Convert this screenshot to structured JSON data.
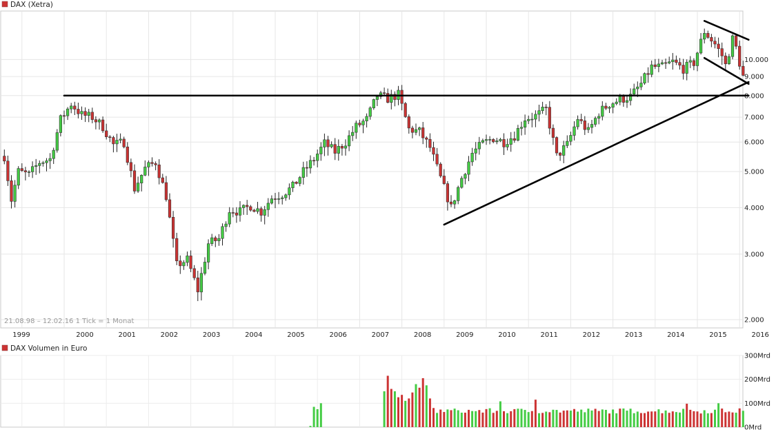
{
  "price_panel": {
    "legend": "DAX (Xetra)",
    "legend_color": "#cc3333",
    "info": "21.08.98 – 12.02.16   1 Tick = 1 Monat",
    "y_ticks": [
      {
        "value": 10000,
        "label": "10.000"
      },
      {
        "value": 9000,
        "label": "9.000"
      },
      {
        "value": 8000,
        "label": "8.000"
      },
      {
        "value": 7000,
        "label": "7.000"
      },
      {
        "value": 6000,
        "label": "6.000"
      },
      {
        "value": 5000,
        "label": "5.000"
      },
      {
        "value": 4000,
        "label": "4.000"
      },
      {
        "value": 3000,
        "label": "3.000"
      },
      {
        "value": 2000,
        "label": "2.000"
      }
    ],
    "x_labels": [
      "1999",
      "2000",
      "2001",
      "2002",
      "2003",
      "2004",
      "2005",
      "2006",
      "2007",
      "2008",
      "2009",
      "2010",
      "2011",
      "2012",
      "2013",
      "2014",
      "2015",
      "2016"
    ],
    "up_color": "#44cc44",
    "down_color": "#cc3333"
  },
  "volume_panel": {
    "legend": "DAX Volumen in Euro",
    "legend_color": "#cc3333",
    "y_ticks": [
      {
        "value": 300,
        "label": "300Mrd"
      },
      {
        "value": 200,
        "label": "200Mrd"
      },
      {
        "value": 100,
        "label": "100Mrd"
      },
      {
        "value": 0,
        "label": "0Mrd"
      }
    ]
  },
  "chart_data": {
    "type": "candlestick",
    "scale": "log",
    "ylim": [
      1900,
      13500
    ],
    "x_range": [
      "1998-08",
      "2016-02"
    ],
    "anchors": [
      [
        "1998-08",
        5500
      ],
      [
        "1998-10",
        4200
      ],
      [
        "1998-12",
        5000
      ],
      [
        "1999-03",
        4900
      ],
      [
        "1999-06",
        5300
      ],
      [
        "1999-09",
        5400
      ],
      [
        "1999-12",
        6900
      ],
      [
        "2000-03",
        7600
      ],
      [
        "2000-06",
        7100
      ],
      [
        "2000-09",
        7000
      ],
      [
        "2000-12",
        6600
      ],
      [
        "2001-03",
        5900
      ],
      [
        "2001-06",
        6000
      ],
      [
        "2001-09",
        4500
      ],
      [
        "2001-12",
        5100
      ],
      [
        "2002-03",
        5300
      ],
      [
        "2002-06",
        4300
      ],
      [
        "2002-09",
        2800
      ],
      [
        "2002-12",
        2900
      ],
      [
        "2003-03",
        2400
      ],
      [
        "2003-06",
        3200
      ],
      [
        "2003-09",
        3300
      ],
      [
        "2003-12",
        3950
      ],
      [
        "2004-03",
        3900
      ],
      [
        "2004-06",
        4050
      ],
      [
        "2004-09",
        3900
      ],
      [
        "2004-12",
        4250
      ],
      [
        "2005-03",
        4350
      ],
      [
        "2005-06",
        4550
      ],
      [
        "2005-09",
        5000
      ],
      [
        "2005-12",
        5400
      ],
      [
        "2006-03",
        5950
      ],
      [
        "2006-06",
        5650
      ],
      [
        "2006-09",
        6000
      ],
      [
        "2006-12",
        6600
      ],
      [
        "2007-03",
        6900
      ],
      [
        "2007-06",
        8000
      ],
      [
        "2007-09",
        7850
      ],
      [
        "2007-12",
        8050
      ],
      [
        "2008-03",
        6500
      ],
      [
        "2008-06",
        6400
      ],
      [
        "2008-09",
        5800
      ],
      [
        "2008-12",
        4800
      ],
      [
        "2009-03",
        4000
      ],
      [
        "2009-06",
        4800
      ],
      [
        "2009-09",
        5600
      ],
      [
        "2009-12",
        5950
      ],
      [
        "2010-03",
        6150
      ],
      [
        "2010-06",
        6000
      ],
      [
        "2010-09",
        6250
      ],
      [
        "2010-12",
        6950
      ],
      [
        "2011-03",
        7050
      ],
      [
        "2011-06",
        7350
      ],
      [
        "2011-09",
        5500
      ],
      [
        "2011-12",
        5900
      ],
      [
        "2012-03",
        6950
      ],
      [
        "2012-06",
        6400
      ],
      [
        "2012-09",
        7200
      ],
      [
        "2012-12",
        7600
      ],
      [
        "2013-03",
        7800
      ],
      [
        "2013-06",
        7950
      ],
      [
        "2013-09",
        8600
      ],
      [
        "2013-12",
        9550
      ],
      [
        "2014-03",
        9550
      ],
      [
        "2014-06",
        9850
      ],
      [
        "2014-09",
        9450
      ],
      [
        "2014-12",
        9800
      ],
      [
        "2015-03",
        11900
      ],
      [
        "2015-06",
        11000
      ],
      [
        "2015-08",
        10250
      ],
      [
        "2015-09",
        9650
      ],
      [
        "2015-11",
        11350
      ],
      [
        "2015-12",
        10750
      ],
      [
        "2016-01",
        9800
      ],
      [
        "2016-02",
        9000
      ]
    ],
    "volume": {
      "ylim": [
        0,
        300
      ],
      "bars": [
        {
          "from": "2005-11",
          "to": "2006-02",
          "values": [
            5,
            85,
            75,
            100
          ],
          "color": "up"
        },
        {
          "from": "2007-08",
          "to": "2008-10",
          "values": [
            150,
            215,
            160,
            150,
            125,
            135,
            110,
            120,
            145,
            180,
            165,
            205,
            175,
            120,
            80
          ],
          "color": "mixed"
        },
        {
          "from": "2008-11",
          "to": "2016-02",
          "base": 68,
          "color": "mixed"
        }
      ],
      "peaks": [
        [
          "2011-03",
          115
        ],
        [
          "2010-05",
          108
        ],
        [
          "2015-07",
          100
        ],
        [
          "2014-10",
          98
        ]
      ]
    },
    "trendlines": [
      {
        "name": "resistance",
        "from": [
          "2000-01",
          8000
        ],
        "to": [
          "2016-02",
          8000
        ]
      },
      {
        "name": "uptrend",
        "from": [
          "2009-01",
          3600
        ],
        "to": [
          "2016-02",
          8700
        ]
      },
      {
        "name": "upper-channel",
        "from": [
          "2015-03",
          12700
        ],
        "to": [
          "2016-02",
          11300
        ]
      },
      {
        "name": "lower-channel",
        "from": [
          "2015-03",
          10100
        ],
        "to": [
          "2016-02",
          8600
        ]
      }
    ]
  }
}
